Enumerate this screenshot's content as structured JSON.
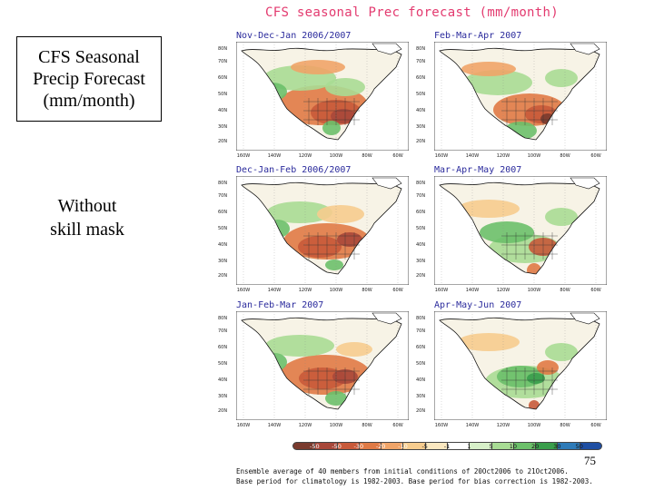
{
  "slide": {
    "heading": [
      "CFS Seasonal",
      "Precip Forecast",
      "(mm/month)"
    ],
    "side_note": [
      "Without",
      "skill mask"
    ],
    "page_number": "75"
  },
  "figure": {
    "title": "CFS seasonal Prec forecast (mm/month)",
    "lat_labels": [
      "80N",
      "70N",
      "60N",
      "50N",
      "40N",
      "30N",
      "20N"
    ],
    "lon_labels": [
      "160W",
      "140W",
      "120W",
      "100W",
      "80W",
      "60W"
    ],
    "panels": [
      {
        "label": "Nov-Dec-Jan 2006/2007"
      },
      {
        "label": "Feb-Mar-Apr 2007"
      },
      {
        "label": "Dec-Jan-Feb 2006/2007"
      },
      {
        "label": "Mar-Apr-May 2007"
      },
      {
        "label": "Jan-Feb-Mar 2007"
      },
      {
        "label": "Apr-May-Jun 2007"
      }
    ],
    "colorbar": {
      "ticks": [
        "-50",
        "-50",
        "-30",
        "-20",
        "-10",
        "-5",
        "-1",
        "1",
        "5",
        "10",
        "20",
        "30",
        "50"
      ],
      "colors": [
        "#7a3b2e",
        "#a8483a",
        "#c85a3a",
        "#e07a45",
        "#f0a468",
        "#f6cc8e",
        "#fbe8c0",
        "#ffffff",
        "#d7f0c8",
        "#a8dc94",
        "#6cc06a",
        "#3a9e4c",
        "#2e7bb8",
        "#1f4fa3"
      ]
    },
    "caption": [
      "Ensemble average of 40 members from initial conditions of 20Oct2006 to 21Oct2006.",
      "Base period for climatology is  1982-2003. Base period for bias correction is 1982-2003."
    ]
  }
}
